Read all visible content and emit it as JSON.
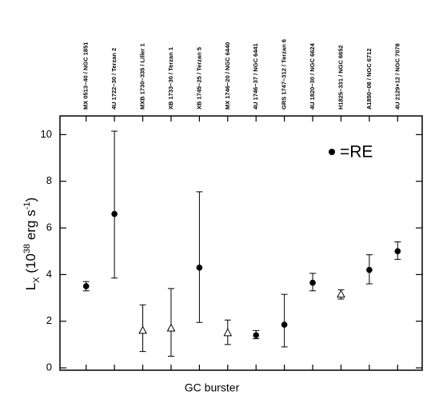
{
  "chart_data": {
    "type": "errorbar",
    "categories": [
      "MX 0513−40 / NGC 1851",
      "4U 1722−30 / Terzan 2",
      "MXB 1730−335 / Liller 1",
      "XB 1733−30 / Terzan 1",
      "XB 1745−25 / Terzan 5",
      "MX 1746−20 / NGC 6440",
      "4U 1746−37 / NGC 6441",
      "GRS 1747−312 / Terzan 6",
      "4U 1820−30 / NGC 6624",
      "H1825−331 / NGC 6652",
      "A1850−08 / NGC 6712",
      "4U 2129+12 / NGC 7078"
    ],
    "values": [
      3.5,
      6.6,
      1.6,
      1.7,
      4.3,
      1.5,
      1.4,
      1.85,
      3.65,
      3.15,
      4.2,
      5.0
    ],
    "err_minus": [
      0.2,
      2.75,
      0.9,
      1.2,
      2.35,
      0.5,
      0.15,
      0.95,
      0.35,
      0.2,
      0.6,
      0.35
    ],
    "err_plus": [
      0.2,
      3.55,
      1.1,
      1.7,
      3.25,
      0.55,
      0.2,
      1.3,
      0.4,
      0.2,
      0.65,
      0.4
    ],
    "markers": [
      "circle",
      "circle",
      "triangle",
      "triangle",
      "circle",
      "triangle",
      "circle",
      "circle",
      "circle",
      "triangle",
      "circle",
      "circle"
    ],
    "ylabel": [
      {
        "text": "L"
      },
      {
        "text": "X",
        "shift": "sub"
      },
      {
        "text": " (10"
      },
      {
        "text": "38",
        "shift": "sup"
      },
      {
        "text": " erg s"
      },
      {
        "text": "-1",
        "shift": "sup"
      },
      {
        "text": ")"
      }
    ],
    "xlabel": "GC burster",
    "legend": {
      "marker": "circle",
      "label": "=RE"
    },
    "ylim": [
      -0.1,
      10.8
    ],
    "yticks": [
      0,
      2,
      4,
      6,
      8,
      10
    ],
    "color": "#000000"
  }
}
